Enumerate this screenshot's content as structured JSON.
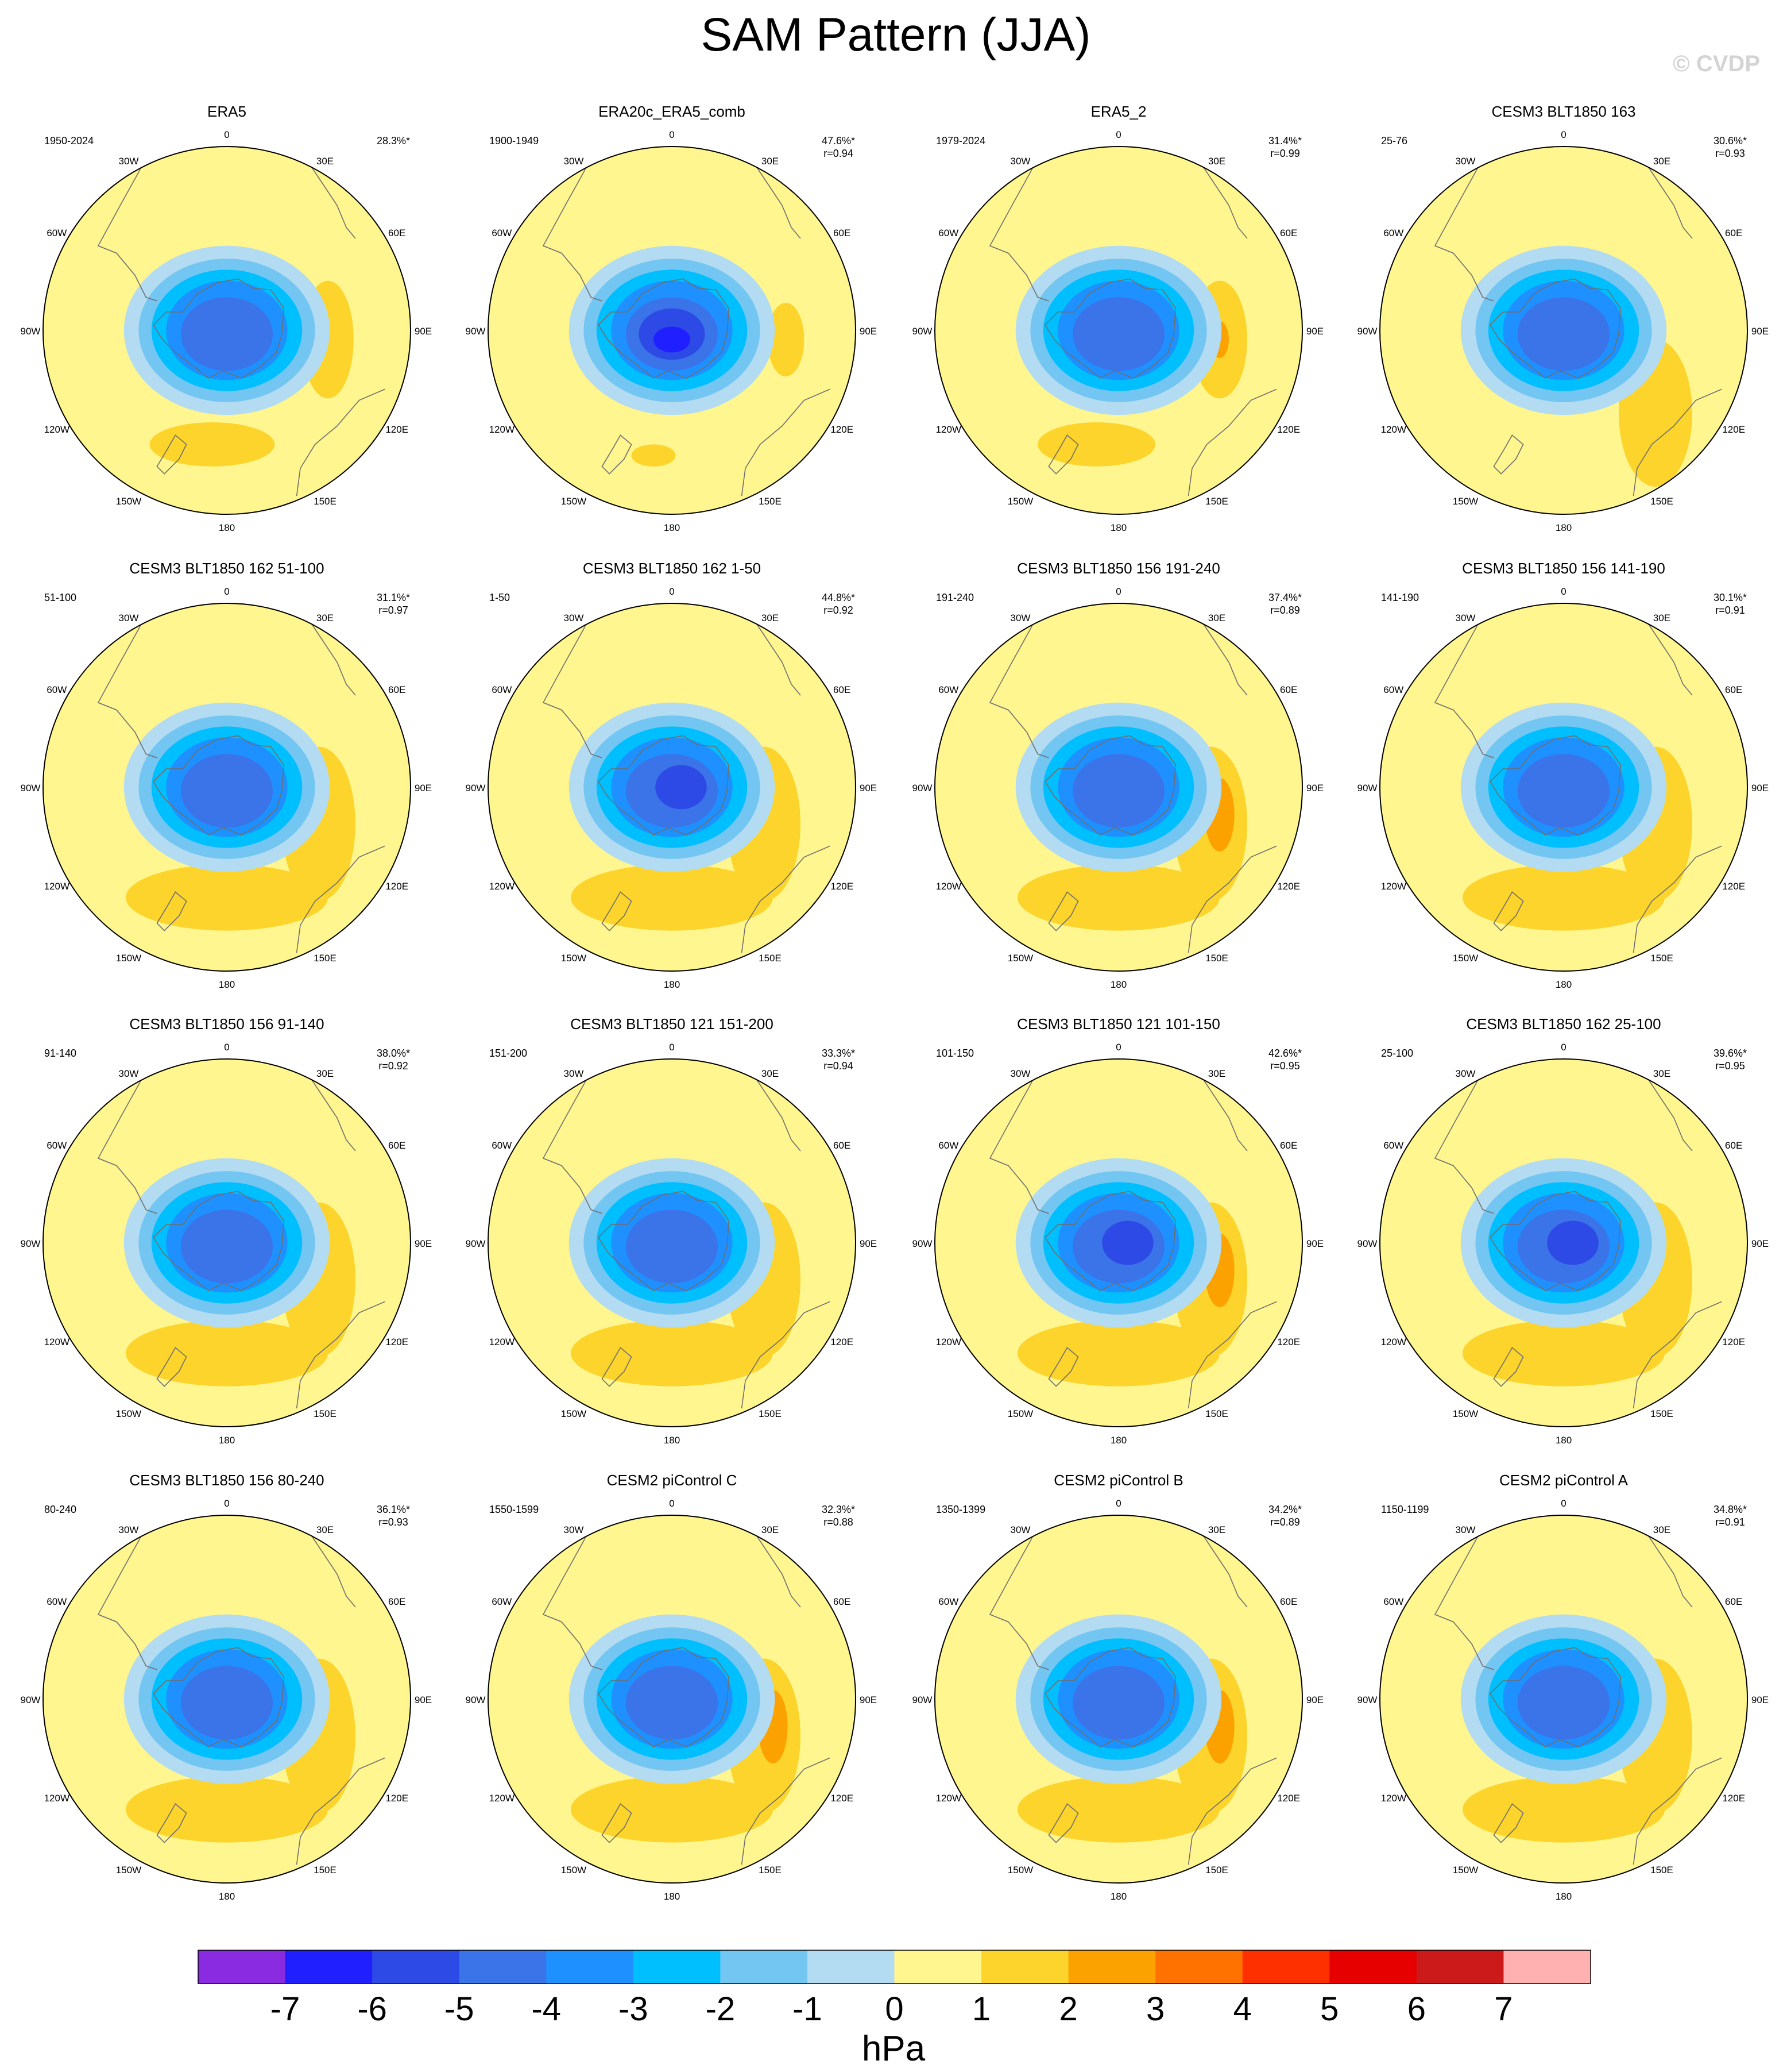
{
  "title": "SAM Pattern (JJA)",
  "watermark": "© CVDP",
  "lon_labels": [
    "0",
    "30E",
    "60E",
    "90E",
    "120E",
    "150E",
    "180",
    "150W",
    "120W",
    "90W",
    "60W",
    "30W"
  ],
  "panels": [
    {
      "title": "ERA5",
      "years": "1950-2024",
      "pct": "28.3%*",
      "r": ""
    },
    {
      "title": "ERA20c_ERA5_comb",
      "years": "1900-1949",
      "pct": "47.6%*",
      "r": "r=0.94"
    },
    {
      "title": "ERA5_2",
      "years": "1979-2024",
      "pct": "31.4%*",
      "r": "r=0.99"
    },
    {
      "title": "CESM3 BLT1850 163",
      "years": "25-76",
      "pct": "30.6%*",
      "r": "r=0.93"
    },
    {
      "title": "CESM3 BLT1850 162 51-100",
      "years": "51-100",
      "pct": "31.1%*",
      "r": "r=0.97"
    },
    {
      "title": "CESM3 BLT1850 162 1-50",
      "years": "1-50",
      "pct": "44.8%*",
      "r": "r=0.92"
    },
    {
      "title": "CESM3 BLT1850 156 191-240",
      "years": "191-240",
      "pct": "37.4%*",
      "r": "r=0.89"
    },
    {
      "title": "CESM3 BLT1850 156 141-190",
      "years": "141-190",
      "pct": "30.1%*",
      "r": "r=0.91"
    },
    {
      "title": "CESM3 BLT1850 156 91-140",
      "years": "91-140",
      "pct": "38.0%*",
      "r": "r=0.92"
    },
    {
      "title": "CESM3 BLT1850 121 151-200",
      "years": "151-200",
      "pct": "33.3%*",
      "r": "r=0.94"
    },
    {
      "title": "CESM3 BLT1850 121 101-150",
      "years": "101-150",
      "pct": "42.6%*",
      "r": "r=0.95"
    },
    {
      "title": "CESM3 BLT1850 162 25-100",
      "years": "25-100",
      "pct": "39.6%*",
      "r": "r=0.95"
    },
    {
      "title": "CESM3 BLT1850 156 80-240",
      "years": "80-240",
      "pct": "36.1%*",
      "r": "r=0.93"
    },
    {
      "title": "CESM2 piControl C",
      "years": "1550-1599",
      "pct": "32.3%*",
      "r": "r=0.88"
    },
    {
      "title": "CESM2 piControl B",
      "years": "1350-1399",
      "pct": "34.2%*",
      "r": "r=0.89"
    },
    {
      "title": "CESM2 piControl A",
      "years": "1150-1199",
      "pct": "34.8%*",
      "r": "r=0.91"
    }
  ],
  "colorbar": {
    "unit": "hPa",
    "labels": [
      "-7",
      "-6",
      "-5",
      "-4",
      "-3",
      "-2",
      "-1",
      "0",
      "1",
      "2",
      "3",
      "4",
      "5",
      "6",
      "7"
    ],
    "colors": [
      "#8a2be2",
      "#1f1fff",
      "#2e4ae6",
      "#3a74e8",
      "#1e90ff",
      "#00bfff",
      "#73c5f2",
      "#b3dcf2",
      "#fff68f",
      "#fcd42b",
      "#fca200",
      "#ff7200",
      "#ff3000",
      "#e60000",
      "#cc1a1a",
      "#ffb0b0"
    ]
  }
}
